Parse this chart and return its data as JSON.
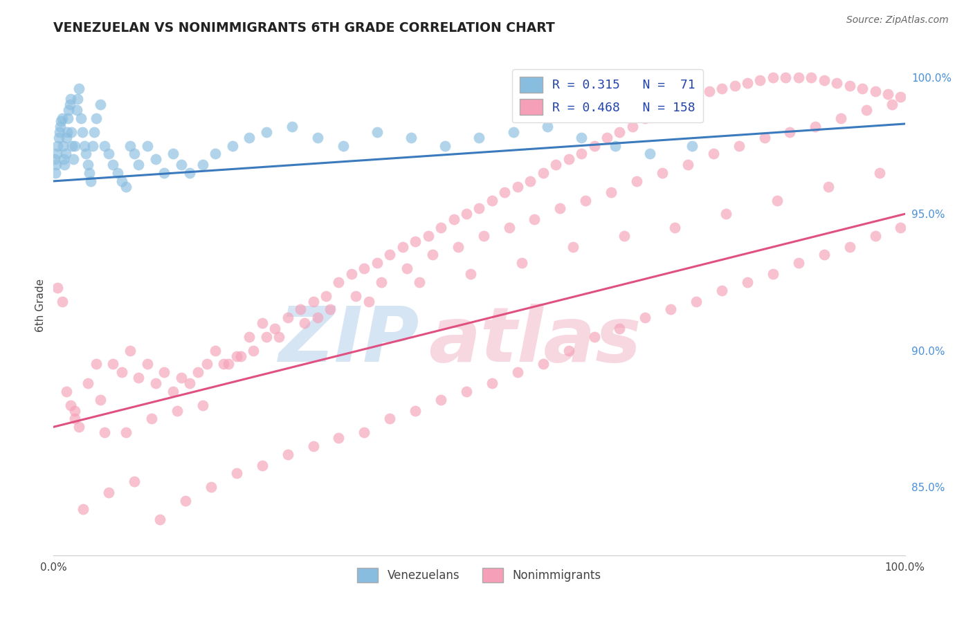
{
  "title": "VENEZUELAN VS NONIMMIGRANTS 6TH GRADE CORRELATION CHART",
  "source_text": "Source: ZipAtlas.com",
  "ylabel": "6th Grade",
  "xlim": [
    0.0,
    1.0
  ],
  "ylim": [
    0.825,
    1.008
  ],
  "right_yticks": [
    0.85,
    0.9,
    0.95,
    1.0
  ],
  "right_yticklabels": [
    "85.0%",
    "90.0%",
    "95.0%",
    "100.0%"
  ],
  "blue_color": "#89bde0",
  "pink_color": "#f5a0b8",
  "blue_line_color": "#3a7abd",
  "pink_line_color": "#e05080",
  "background_color": "#ffffff",
  "grid_color": "#cccccc",
  "title_color": "#222222",
  "source_color": "#666666",
  "watermark_zip_color": "#c5daf0",
  "watermark_atlas_color": "#f5c8d5",
  "blue_line_x0": 0.0,
  "blue_line_x1": 1.0,
  "blue_line_y0": 0.962,
  "blue_line_y1": 0.983,
  "pink_line_x0": 0.0,
  "pink_line_x1": 1.0,
  "pink_line_y0": 0.872,
  "pink_line_y1": 0.95,
  "blue_scatter_x": [
    0.001,
    0.002,
    0.003,
    0.004,
    0.005,
    0.006,
    0.007,
    0.008,
    0.009,
    0.01,
    0.011,
    0.012,
    0.013,
    0.014,
    0.015,
    0.016,
    0.017,
    0.018,
    0.019,
    0.02,
    0.021,
    0.022,
    0.023,
    0.025,
    0.027,
    0.028,
    0.03,
    0.032,
    0.034,
    0.036,
    0.038,
    0.04,
    0.042,
    0.044,
    0.046,
    0.048,
    0.05,
    0.055,
    0.06,
    0.065,
    0.07,
    0.075,
    0.08,
    0.085,
    0.09,
    0.095,
    0.1,
    0.11,
    0.12,
    0.13,
    0.14,
    0.15,
    0.16,
    0.175,
    0.19,
    0.21,
    0.23,
    0.25,
    0.28,
    0.31,
    0.34,
    0.38,
    0.42,
    0.46,
    0.5,
    0.54,
    0.58,
    0.62,
    0.66,
    0.7,
    0.75
  ],
  "blue_scatter_y": [
    0.97,
    0.965,
    0.968,
    0.972,
    0.975,
    0.978,
    0.98,
    0.982,
    0.984,
    0.985,
    0.975,
    0.97,
    0.968,
    0.972,
    0.978,
    0.98,
    0.985,
    0.988,
    0.99,
    0.992,
    0.98,
    0.975,
    0.97,
    0.975,
    0.988,
    0.992,
    0.996,
    0.985,
    0.98,
    0.975,
    0.972,
    0.968,
    0.965,
    0.962,
    0.975,
    0.98,
    0.985,
    0.99,
    0.975,
    0.972,
    0.968,
    0.965,
    0.962,
    0.96,
    0.975,
    0.972,
    0.968,
    0.975,
    0.97,
    0.965,
    0.972,
    0.968,
    0.965,
    0.968,
    0.972,
    0.975,
    0.978,
    0.98,
    0.982,
    0.978,
    0.975,
    0.98,
    0.978,
    0.975,
    0.978,
    0.98,
    0.982,
    0.978,
    0.975,
    0.972,
    0.975
  ],
  "pink_scatter_x": [
    0.005,
    0.01,
    0.015,
    0.02,
    0.025,
    0.03,
    0.04,
    0.05,
    0.06,
    0.07,
    0.08,
    0.09,
    0.1,
    0.11,
    0.12,
    0.13,
    0.14,
    0.15,
    0.16,
    0.17,
    0.18,
    0.19,
    0.2,
    0.215,
    0.23,
    0.245,
    0.26,
    0.275,
    0.29,
    0.305,
    0.32,
    0.335,
    0.35,
    0.365,
    0.38,
    0.395,
    0.41,
    0.425,
    0.44,
    0.455,
    0.47,
    0.485,
    0.5,
    0.515,
    0.53,
    0.545,
    0.56,
    0.575,
    0.59,
    0.605,
    0.62,
    0.635,
    0.65,
    0.665,
    0.68,
    0.695,
    0.71,
    0.725,
    0.74,
    0.755,
    0.77,
    0.785,
    0.8,
    0.815,
    0.83,
    0.845,
    0.86,
    0.875,
    0.89,
    0.905,
    0.92,
    0.935,
    0.95,
    0.965,
    0.98,
    0.995,
    0.025,
    0.055,
    0.085,
    0.115,
    0.145,
    0.175,
    0.205,
    0.235,
    0.265,
    0.295,
    0.325,
    0.355,
    0.385,
    0.415,
    0.445,
    0.475,
    0.505,
    0.535,
    0.565,
    0.595,
    0.625,
    0.655,
    0.685,
    0.715,
    0.745,
    0.775,
    0.805,
    0.835,
    0.865,
    0.895,
    0.925,
    0.955,
    0.985,
    0.22,
    0.25,
    0.31,
    0.37,
    0.43,
    0.49,
    0.55,
    0.61,
    0.67,
    0.73,
    0.79,
    0.85,
    0.91,
    0.97,
    0.035,
    0.065,
    0.095,
    0.125,
    0.155,
    0.185,
    0.215,
    0.245,
    0.275,
    0.305,
    0.335,
    0.365,
    0.395,
    0.425,
    0.455,
    0.485,
    0.515,
    0.545,
    0.575,
    0.605,
    0.635,
    0.665,
    0.695,
    0.725,
    0.755,
    0.785,
    0.815,
    0.845,
    0.875,
    0.905,
    0.935,
    0.965,
    0.995
  ],
  "pink_scatter_y": [
    0.923,
    0.918,
    0.885,
    0.88,
    0.875,
    0.872,
    0.888,
    0.895,
    0.87,
    0.895,
    0.892,
    0.9,
    0.89,
    0.895,
    0.888,
    0.892,
    0.885,
    0.89,
    0.888,
    0.892,
    0.895,
    0.9,
    0.895,
    0.898,
    0.905,
    0.91,
    0.908,
    0.912,
    0.915,
    0.918,
    0.92,
    0.925,
    0.928,
    0.93,
    0.932,
    0.935,
    0.938,
    0.94,
    0.942,
    0.945,
    0.948,
    0.95,
    0.952,
    0.955,
    0.958,
    0.96,
    0.962,
    0.965,
    0.968,
    0.97,
    0.972,
    0.975,
    0.978,
    0.98,
    0.982,
    0.985,
    0.988,
    0.99,
    0.992,
    0.994,
    0.995,
    0.996,
    0.997,
    0.998,
    0.999,
    1.0,
    1.0,
    1.0,
    1.0,
    0.999,
    0.998,
    0.997,
    0.996,
    0.995,
    0.994,
    0.993,
    0.878,
    0.882,
    0.87,
    0.875,
    0.878,
    0.88,
    0.895,
    0.9,
    0.905,
    0.91,
    0.915,
    0.92,
    0.925,
    0.93,
    0.935,
    0.938,
    0.942,
    0.945,
    0.948,
    0.952,
    0.955,
    0.958,
    0.962,
    0.965,
    0.968,
    0.972,
    0.975,
    0.978,
    0.98,
    0.982,
    0.985,
    0.988,
    0.99,
    0.898,
    0.905,
    0.912,
    0.918,
    0.925,
    0.928,
    0.932,
    0.938,
    0.942,
    0.945,
    0.95,
    0.955,
    0.96,
    0.965,
    0.842,
    0.848,
    0.852,
    0.838,
    0.845,
    0.85,
    0.855,
    0.858,
    0.862,
    0.865,
    0.868,
    0.87,
    0.875,
    0.878,
    0.882,
    0.885,
    0.888,
    0.892,
    0.895,
    0.9,
    0.905,
    0.908,
    0.912,
    0.915,
    0.918,
    0.922,
    0.925,
    0.928,
    0.932,
    0.935,
    0.938,
    0.942,
    0.945
  ]
}
